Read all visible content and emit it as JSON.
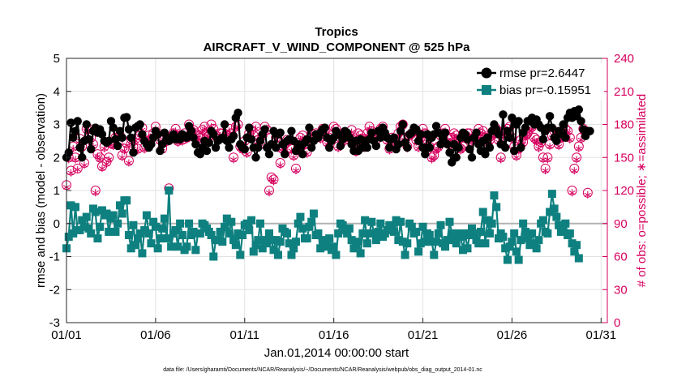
{
  "chart_data": {
    "type": "line",
    "title": "Tropics",
    "subtitle": "AIRCRAFT_V_WIND_COMPONENT @ 525 hPa",
    "xlabel": "Jan.01,2014 00:00:00 start",
    "ylabel_left": "rmse and bias (model - observation)",
    "ylabel_right": "# of obs: o=possible; ∗=assimilated",
    "footnote": "data file: /Users/gharamti/Documents/NCAR/Reanalysis/~/Documents/NCAR/Reanalysis/webpub/obs_diag_output_2014-01.nc",
    "xlim": [
      1,
      31.35
    ],
    "ylim_left": [
      -3,
      5
    ],
    "ylim_right": [
      0,
      240
    ],
    "x_ticks": [
      1,
      6,
      11,
      16,
      21,
      26,
      31
    ],
    "x_tick_labels": [
      "01/01",
      "01/06",
      "01/11",
      "01/16",
      "01/21",
      "01/26",
      "01/31"
    ],
    "y_ticks_left": [
      -3,
      -2,
      -1,
      0,
      1,
      2,
      3,
      4,
      5
    ],
    "y_ticks_right": [
      0,
      30,
      60,
      90,
      120,
      150,
      180,
      210,
      240
    ],
    "grid": true,
    "legend_position": "top-right",
    "zero_line": 0,
    "colors": {
      "rmse": "#000000",
      "bias": "#0f8080",
      "counts": "#d6005e",
      "zero": "#b3b3b3",
      "right_axis": "#d6005e"
    },
    "series": [
      {
        "name": "rmse pr=2.6447",
        "key": "rmse",
        "marker": "circle",
        "values": [
          2.0,
          2.15,
          3.05,
          2.6,
          2.8,
          3.1,
          2.3,
          2.0,
          2.5,
          3.0,
          2.55,
          2.25,
          2.8,
          2.9,
          2.75,
          2.85,
          2.7,
          2.5,
          2.45,
          2.5,
          3.1,
          2.9,
          2.55,
          2.35,
          2.8,
          2.6,
          3.2,
          3.22,
          2.85,
          2.6,
          2.15,
          2.9,
          2.95,
          3.0,
          2.7,
          2.5,
          2.4,
          2.3,
          2.4,
          2.6,
          2.8,
          2.7,
          2.2,
          2.4,
          2.75,
          2.6,
          2.5,
          2.55,
          2.7,
          2.55,
          2.6,
          2.55,
          2.7,
          2.65,
          2.6,
          2.95,
          2.8,
          2.6,
          2.4,
          2.15,
          2.1,
          2.3,
          2.5,
          2.2,
          2.45,
          2.8,
          2.7,
          2.3,
          2.5,
          2.55,
          2.6,
          3.0,
          2.5,
          2.3,
          2.55,
          2.65,
          3.2,
          3.35,
          2.4,
          2.3,
          2.25,
          2.6,
          2.9,
          2.55,
          2.3,
          2.0,
          2.3,
          2.5,
          2.7,
          2.85,
          2.3,
          2.1,
          2.4,
          2.8,
          2.3,
          2.7,
          2.75,
          2.4,
          2.1,
          2.5,
          2.55,
          2.8,
          2.5,
          2.2,
          2.4,
          2.35,
          2.1,
          2.45,
          2.55,
          2.9,
          2.3,
          2.5,
          2.7,
          2.6,
          2.75,
          2.85,
          2.9,
          2.6,
          2.3,
          2.5,
          2.6,
          2.8,
          2.7,
          2.35,
          2.55,
          2.8,
          2.75,
          2.6,
          2.4,
          2.2,
          2.5,
          2.2,
          2.55,
          2.3,
          2.5,
          2.3,
          2.55,
          2.75,
          2.5,
          2.35,
          2.8,
          2.6,
          2.9,
          2.75,
          2.6,
          2.3,
          2.55,
          2.6,
          2.25,
          2.4,
          2.8,
          3.0,
          2.45,
          2.3,
          2.7,
          2.75,
          2.9,
          2.85,
          2.5,
          2.7,
          2.3,
          2.1,
          2.7,
          2.3,
          2.6,
          2.7,
          2.95,
          2.75,
          2.4,
          2.6,
          2.75,
          2.4,
          2.15,
          1.85,
          2.4,
          2.0,
          2.3,
          2.6,
          2.75,
          2.7,
          2.55,
          2.25,
          2.0,
          2.6,
          2.75,
          2.4,
          2.2,
          2.5,
          2.1,
          2.6,
          2.3,
          2.8,
          3.0,
          2.85,
          2.7,
          2.4,
          3.3,
          2.3,
          2.8,
          2.6,
          3.2,
          2.2,
          3.0,
          3.1,
          2.3,
          2.75,
          2.9,
          3.1,
          3.1,
          3.2,
          3.0,
          3.15,
          3.0,
          2.9,
          2.55,
          2.8,
          2.9,
          3.25,
          2.9,
          2.6,
          2.5,
          2.8,
          2.7,
          3.0,
          2.6,
          3.2,
          3.35,
          3.2,
          3.4,
          3.25,
          3.45,
          3.1,
          2.85,
          2.65,
          2.8,
          2.8
        ]
      },
      {
        "name": "bias pr=-0.15951",
        "key": "bias",
        "marker": "square",
        "values": [
          -0.75,
          -0.4,
          0.55,
          -0.3,
          0.5,
          -0.2,
          -0.2,
          0.1,
          -0.1,
          0.2,
          -0.15,
          -0.3,
          0.45,
          0.35,
          -0.45,
          -0.1,
          0.4,
          0.25,
          0.3,
          -0.25,
          0.15,
          0.25,
          -0.25,
          0.0,
          0.55,
          0.3,
          0.7,
          0.7,
          -0.35,
          -0.75,
          -0.05,
          -0.65,
          -0.45,
          -0.3,
          -0.9,
          -0.2,
          0.25,
          -0.3,
          -0.6,
          0.05,
          -0.1,
          -0.75,
          -0.45,
          -0.15,
          0.15,
          -0.45,
          1.0,
          -0.7,
          -0.3,
          -0.2,
          -0.7,
          0.0,
          -0.35,
          -0.8,
          -0.7,
          0.0,
          -0.35,
          -0.25,
          -0.8,
          -0.3,
          -0.3,
          0.0,
          -0.05,
          -0.15,
          -0.25,
          -0.35,
          -1.0,
          -0.5,
          -0.5,
          -0.25,
          -0.55,
          -0.1,
          0.15,
          -0.3,
          0.05,
          -0.5,
          -0.65,
          -0.3,
          -0.95,
          -0.35,
          -0.05,
          0.0,
          -0.2,
          0.1,
          -0.85,
          -0.65,
          -0.5,
          0.0,
          -0.75,
          -0.5,
          -0.6,
          -0.3,
          -0.5,
          -0.8,
          -0.5,
          -0.95,
          -0.55,
          -0.15,
          -0.25,
          -0.3,
          -0.6,
          -0.95,
          -0.75,
          -0.55,
          0.0,
          0.2,
          -0.15,
          -0.45,
          -0.45,
          -0.1,
          0.05,
          0.3,
          -0.35,
          -0.3,
          -0.75,
          -0.5,
          -0.6,
          -0.7,
          -0.45,
          -0.8,
          -0.7,
          -0.95,
          -0.3,
          0.0,
          -0.05,
          -0.2,
          -0.3,
          -0.15,
          -0.5,
          -0.75,
          -0.65,
          -0.55,
          -0.9,
          -0.3,
          0.1,
          -0.6,
          -0.3,
          0.05,
          -0.3,
          -0.5,
          -0.25,
          0.0,
          -0.4,
          -0.3,
          -0.2,
          -0.05,
          -0.1,
          -0.25,
          0.1,
          -0.5,
          0.05,
          -0.55,
          -0.95,
          -0.6,
          0.0,
          -0.1,
          -0.3,
          -0.25,
          -0.85,
          -0.6,
          -0.1,
          -0.55,
          -0.3,
          -0.35,
          -0.55,
          -0.95,
          -0.55,
          -0.3,
          -0.05,
          -0.6,
          -0.7,
          -0.5,
          0.05,
          -0.3,
          -0.5,
          -0.6,
          -0.3,
          -0.4,
          -0.8,
          -0.3,
          -0.75,
          -0.35,
          -0.15,
          -0.3,
          -0.5,
          -0.6,
          -0.25,
          0.35,
          -0.6,
          0.1,
          -0.3,
          0.0,
          0.85,
          0.5,
          -0.45,
          -0.3,
          -0.4,
          -0.75,
          -1.1,
          -0.7,
          -0.55,
          -0.3,
          -0.85,
          -1.1,
          -0.5,
          0.0,
          -0.25,
          -0.45,
          -0.65,
          -0.3,
          -0.6,
          -0.75,
          -0.5,
          0.0,
          0.1,
          -0.25,
          -0.3,
          0.35,
          0.9,
          0.45,
          0.2,
          -0.05,
          -0.25,
          -0.2,
          0.0,
          -0.35,
          -0.3,
          -0.6,
          -0.85,
          -0.65,
          -1.05
        ]
      },
      {
        "name": "possible obs",
        "key": "possible",
        "marker": "circle-open",
        "values": [
          125,
          150,
          138,
          160,
          150,
          140,
          167,
          160,
          145,
          176,
          176,
          168,
          162,
          120,
          153,
          150,
          142,
          160,
          146,
          150,
          163,
          162,
          168,
          172,
          170,
          152,
          158,
          163,
          147,
          167,
          160,
          167,
          158,
          170,
          177,
          159,
          165,
          170,
          167,
          172,
          178,
          172,
          166,
          158,
          170,
          165,
          122,
          167,
          172,
          176,
          165,
          170,
          166,
          172,
          168,
          180,
          174,
          175,
          172,
          170,
          168,
          175,
          178,
          172,
          170,
          180,
          176,
          170,
          167,
          172,
          172,
          168,
          170,
          176,
          172,
          150,
          178,
          180,
          160,
          158,
          165,
          155,
          172,
          175,
          170,
          178,
          166,
          162,
          170,
          178,
          175,
          120,
          132,
          130,
          168,
          160,
          145,
          158,
          162,
          166,
          165,
          158,
          152,
          140,
          160,
          168,
          170,
          162,
          155,
          162,
          172,
          168,
          172,
          170,
          168,
          176,
          174,
          164,
          168,
          170,
          178,
          176,
          160,
          168,
          172,
          166,
          170,
          168,
          175,
          162,
          156,
          172,
          170,
          167,
          160,
          172,
          178,
          174,
          172,
          166,
          170,
          176,
          178,
          170,
          166,
          158,
          168,
          166,
          162,
          172,
          178,
          180,
          168,
          160,
          170,
          172,
          174,
          166,
          160,
          168,
          176,
          172,
          166,
          160,
          150,
          152,
          158,
          160,
          170,
          172,
          176,
          168,
          162,
          168,
          172,
          170,
          166,
          158,
          160,
          168,
          172,
          172,
          166,
          168,
          170,
          176,
          172,
          174,
          168,
          162,
          166,
          170,
          172,
          176,
          166,
          150,
          172,
          174,
          176,
          178,
          168,
          160,
          152,
          158,
          166,
          164,
          170,
          172,
          176,
          178,
          168,
          166,
          160,
          164,
          150,
          140,
          150,
          162,
          170,
          174,
          168,
          162,
          168,
          172,
          176,
          174,
          168,
          120,
          140,
          150,
          160,
          168,
          176,
          172,
          118
        ]
      },
      {
        "name": "assimilated obs",
        "key": "assimilated",
        "marker": "star",
        "values": [
          123,
          148,
          136,
          158,
          148,
          139,
          165,
          158,
          143,
          174,
          174,
          166,
          160,
          118,
          151,
          148,
          140,
          158,
          144,
          148,
          161,
          160,
          166,
          170,
          168,
          150,
          156,
          161,
          145,
          165,
          158,
          165,
          156,
          168,
          175,
          157,
          163,
          168,
          165,
          170,
          176,
          170,
          164,
          156,
          168,
          163,
          120,
          165,
          170,
          174,
          163,
          168,
          164,
          170,
          166,
          178,
          172,
          173,
          170,
          168,
          166,
          173,
          176,
          170,
          168,
          178,
          174,
          168,
          165,
          170,
          170,
          166,
          168,
          174,
          170,
          148,
          176,
          178,
          158,
          156,
          163,
          153,
          170,
          173,
          168,
          176,
          164,
          160,
          168,
          176,
          173,
          118,
          130,
          128,
          166,
          158,
          143,
          156,
          160,
          164,
          163,
          156,
          150,
          138,
          158,
          166,
          168,
          160,
          153,
          160,
          170,
          166,
          170,
          168,
          166,
          174,
          172,
          162,
          166,
          168,
          176,
          174,
          158,
          166,
          170,
          164,
          168,
          166,
          173,
          160,
          154,
          170,
          168,
          165,
          158,
          170,
          176,
          172,
          170,
          164,
          168,
          174,
          176,
          168,
          164,
          156,
          166,
          164,
          160,
          170,
          176,
          178,
          166,
          158,
          168,
          170,
          172,
          164,
          158,
          166,
          174,
          170,
          164,
          158,
          148,
          150,
          156,
          158,
          168,
          170,
          174,
          166,
          160,
          166,
          170,
          168,
          164,
          156,
          158,
          166,
          170,
          170,
          164,
          166,
          168,
          174,
          170,
          172,
          166,
          160,
          164,
          168,
          170,
          174,
          164,
          148,
          170,
          172,
          174,
          176,
          166,
          158,
          150,
          156,
          164,
          162,
          168,
          170,
          174,
          176,
          166,
          164,
          158,
          162,
          148,
          138,
          148,
          160,
          168,
          172,
          166,
          160,
          166,
          170,
          174,
          172,
          166,
          118,
          138,
          148,
          158,
          166,
          174,
          170,
          116
        ]
      }
    ]
  }
}
